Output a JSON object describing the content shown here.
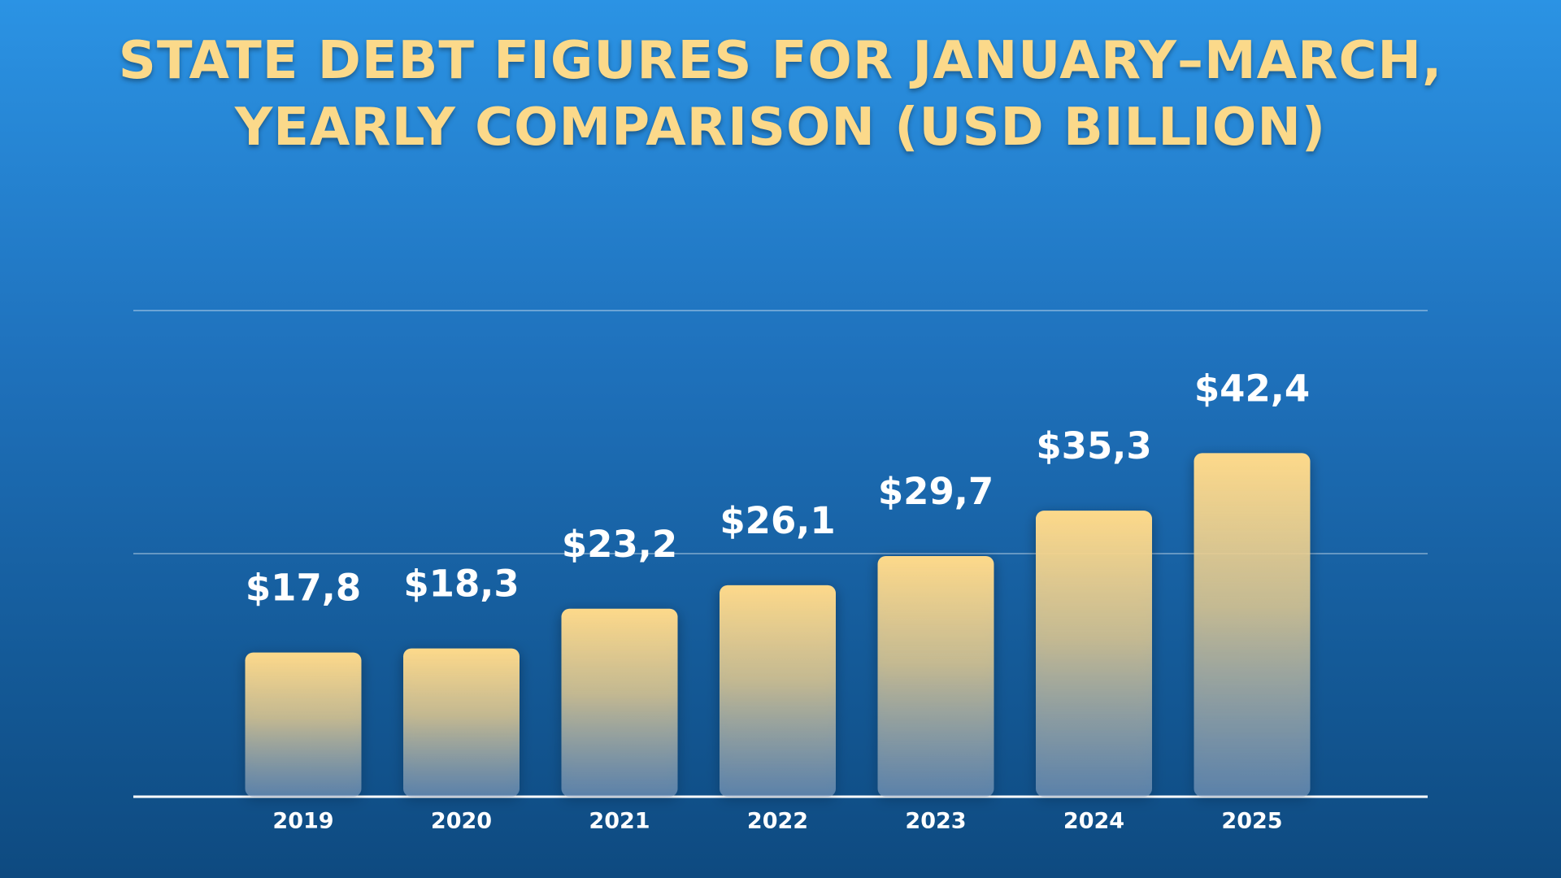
{
  "chart_data": {
    "type": "bar",
    "title": "STATE DEBT FIGURES FOR JANUARY–MARCH, YEARLY COMPARISON (USD BILLION)",
    "categories": [
      "2019",
      "2020",
      "2021",
      "2022",
      "2023",
      "2024",
      "2025"
    ],
    "values": [
      17.8,
      18.3,
      23.2,
      26.1,
      29.7,
      35.3,
      42.4
    ],
    "value_labels": [
      "$17,8",
      "$18,3",
      "$23,2",
      "$26,1",
      "$29,7",
      "$35,3",
      "$42,4"
    ],
    "color": "#fdd98a",
    "ylim": [
      0,
      60
    ],
    "yticks": [
      0,
      30,
      60
    ],
    "grid": true
  }
}
